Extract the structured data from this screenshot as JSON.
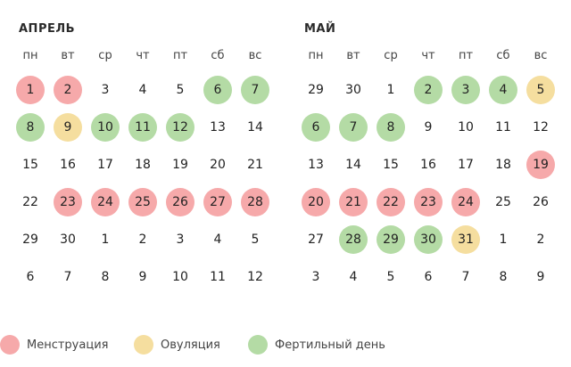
{
  "colors": {
    "menstruation": "#f6a9aa",
    "ovulation": "#f5de9f",
    "fertile": "#b4dba5"
  },
  "weekdays": [
    "пн",
    "вт",
    "ср",
    "чт",
    "пт",
    "сб",
    "вс"
  ],
  "months": [
    {
      "title": "АПРЕЛЬ",
      "weeks": [
        [
          {
            "n": "1",
            "t": "menstruation"
          },
          {
            "n": "2",
            "t": "menstruation"
          },
          {
            "n": "3"
          },
          {
            "n": "4"
          },
          {
            "n": "5"
          },
          {
            "n": "6",
            "t": "fertile"
          },
          {
            "n": "7",
            "t": "fertile"
          }
        ],
        [
          {
            "n": "8",
            "t": "fertile"
          },
          {
            "n": "9",
            "t": "ovulation"
          },
          {
            "n": "10",
            "t": "fertile"
          },
          {
            "n": "11",
            "t": "fertile"
          },
          {
            "n": "12",
            "t": "fertile"
          },
          {
            "n": "13"
          },
          {
            "n": "14"
          }
        ],
        [
          {
            "n": "15"
          },
          {
            "n": "16"
          },
          {
            "n": "17"
          },
          {
            "n": "18"
          },
          {
            "n": "19"
          },
          {
            "n": "20"
          },
          {
            "n": "21"
          }
        ],
        [
          {
            "n": "22"
          },
          {
            "n": "23",
            "t": "menstruation"
          },
          {
            "n": "24",
            "t": "menstruation"
          },
          {
            "n": "25",
            "t": "menstruation"
          },
          {
            "n": "26",
            "t": "menstruation"
          },
          {
            "n": "27",
            "t": "menstruation"
          },
          {
            "n": "28",
            "t": "menstruation"
          }
        ],
        [
          {
            "n": "29"
          },
          {
            "n": "30"
          },
          {
            "n": "1"
          },
          {
            "n": "2"
          },
          {
            "n": "3"
          },
          {
            "n": "4"
          },
          {
            "n": "5"
          }
        ],
        [
          {
            "n": "6"
          },
          {
            "n": "7"
          },
          {
            "n": "8"
          },
          {
            "n": "9"
          },
          {
            "n": "10"
          },
          {
            "n": "11"
          },
          {
            "n": "12"
          }
        ]
      ]
    },
    {
      "title": "МАЙ",
      "weeks": [
        [
          {
            "n": "29"
          },
          {
            "n": "30"
          },
          {
            "n": "1"
          },
          {
            "n": "2",
            "t": "fertile"
          },
          {
            "n": "3",
            "t": "fertile"
          },
          {
            "n": "4",
            "t": "fertile"
          },
          {
            "n": "5",
            "t": "ovulation"
          }
        ],
        [
          {
            "n": "6",
            "t": "fertile"
          },
          {
            "n": "7",
            "t": "fertile"
          },
          {
            "n": "8",
            "t": "fertile"
          },
          {
            "n": "9"
          },
          {
            "n": "10"
          },
          {
            "n": "11"
          },
          {
            "n": "12"
          }
        ],
        [
          {
            "n": "13"
          },
          {
            "n": "14"
          },
          {
            "n": "15"
          },
          {
            "n": "16"
          },
          {
            "n": "17"
          },
          {
            "n": "18"
          },
          {
            "n": "19",
            "t": "menstruation"
          }
        ],
        [
          {
            "n": "20",
            "t": "menstruation"
          },
          {
            "n": "21",
            "t": "menstruation"
          },
          {
            "n": "22",
            "t": "menstruation"
          },
          {
            "n": "23",
            "t": "menstruation"
          },
          {
            "n": "24",
            "t": "menstruation"
          },
          {
            "n": "25"
          },
          {
            "n": "26"
          }
        ],
        [
          {
            "n": "27"
          },
          {
            "n": "28",
            "t": "fertile"
          },
          {
            "n": "29",
            "t": "fertile"
          },
          {
            "n": "30",
            "t": "fertile"
          },
          {
            "n": "31",
            "t": "ovulation"
          },
          {
            "n": "1"
          },
          {
            "n": "2"
          }
        ],
        [
          {
            "n": "3"
          },
          {
            "n": "4"
          },
          {
            "n": "5"
          },
          {
            "n": "6"
          },
          {
            "n": "7"
          },
          {
            "n": "8"
          },
          {
            "n": "9"
          }
        ]
      ]
    }
  ],
  "legend": [
    {
      "type": "menstruation",
      "label": "Менструация"
    },
    {
      "type": "ovulation",
      "label": "Овуляция"
    },
    {
      "type": "fertile",
      "label": "Фертильный день"
    }
  ]
}
